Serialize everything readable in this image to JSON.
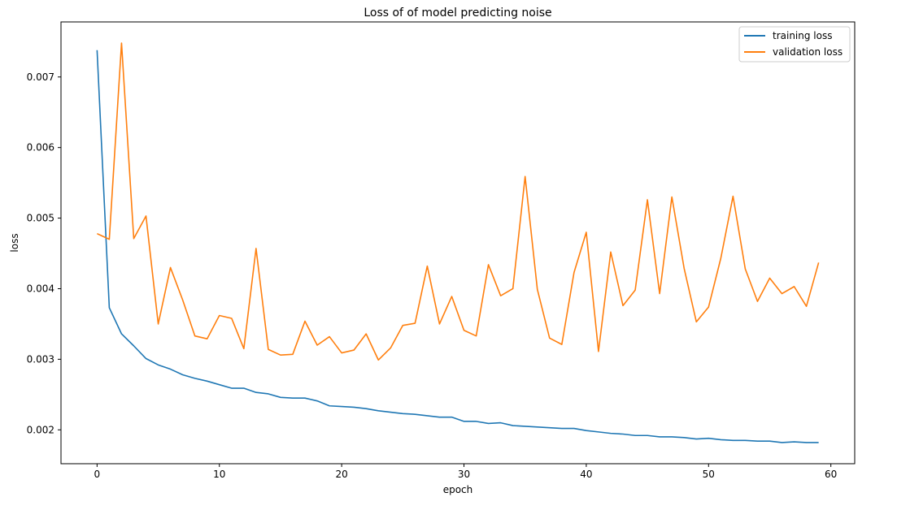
{
  "chart_data": {
    "type": "line",
    "title": "Loss of of model predicting noise",
    "xlabel": "epoch",
    "ylabel": "loss",
    "xlim": [
      -2.95,
      61.95
    ],
    "ylim": [
      0.00152,
      0.00778
    ],
    "xticks": [
      0,
      10,
      20,
      30,
      40,
      50,
      60
    ],
    "xtick_labels": [
      "0",
      "10",
      "20",
      "30",
      "40",
      "50",
      "60"
    ],
    "yticks": [
      0.002,
      0.003,
      0.004,
      0.005,
      0.006,
      0.007
    ],
    "ytick_labels": [
      "0.002",
      "0.003",
      "0.004",
      "0.005",
      "0.006",
      "0.007"
    ],
    "grid": false,
    "legend": "top-right",
    "x": [
      0,
      1,
      2,
      3,
      4,
      5,
      6,
      7,
      8,
      9,
      10,
      11,
      12,
      13,
      14,
      15,
      16,
      17,
      18,
      19,
      20,
      21,
      22,
      23,
      24,
      25,
      26,
      27,
      28,
      29,
      30,
      31,
      32,
      33,
      34,
      35,
      36,
      37,
      38,
      39,
      40,
      41,
      42,
      43,
      44,
      45,
      46,
      47,
      48,
      49,
      50,
      51,
      52,
      53,
      54,
      55,
      56,
      57,
      58,
      59
    ],
    "series": [
      {
        "name": "training loss",
        "color": "#1f77b4",
        "values": [
          0.00738,
          0.00373,
          0.00336,
          0.00319,
          0.00301,
          0.00292,
          0.00286,
          0.00278,
          0.00273,
          0.00269,
          0.00264,
          0.00259,
          0.00259,
          0.00253,
          0.00251,
          0.00246,
          0.00245,
          0.00245,
          0.00241,
          0.00234,
          0.00233,
          0.00232,
          0.0023,
          0.00227,
          0.00225,
          0.00223,
          0.00222,
          0.0022,
          0.00218,
          0.00218,
          0.00212,
          0.00212,
          0.00209,
          0.0021,
          0.00206,
          0.00205,
          0.00204,
          0.00203,
          0.00202,
          0.00202,
          0.00199,
          0.00197,
          0.00195,
          0.00194,
          0.00192,
          0.00192,
          0.0019,
          0.0019,
          0.00189,
          0.00187,
          0.00188,
          0.00186,
          0.00185,
          0.00185,
          0.00184,
          0.00184,
          0.00182,
          0.00183,
          0.00182,
          0.00182
        ]
      },
      {
        "name": "validation loss",
        "color": "#ff7f0e",
        "values": [
          0.00478,
          0.0047,
          0.00748,
          0.00471,
          0.00503,
          0.0035,
          0.0043,
          0.00384,
          0.00333,
          0.00329,
          0.00362,
          0.00358,
          0.00315,
          0.00457,
          0.00314,
          0.00306,
          0.00307,
          0.00354,
          0.0032,
          0.00332,
          0.00309,
          0.00313,
          0.00336,
          0.00299,
          0.00316,
          0.00348,
          0.00351,
          0.00432,
          0.0035,
          0.00389,
          0.00341,
          0.00333,
          0.00434,
          0.0039,
          0.004,
          0.00559,
          0.00399,
          0.0033,
          0.00321,
          0.00423,
          0.0048,
          0.00311,
          0.00452,
          0.00376,
          0.00398,
          0.00526,
          0.00393,
          0.0053,
          0.00429,
          0.00353,
          0.00374,
          0.00443,
          0.00531,
          0.00428,
          0.00382,
          0.00415,
          0.00393,
          0.00403,
          0.00375,
          0.00437
        ]
      }
    ]
  }
}
